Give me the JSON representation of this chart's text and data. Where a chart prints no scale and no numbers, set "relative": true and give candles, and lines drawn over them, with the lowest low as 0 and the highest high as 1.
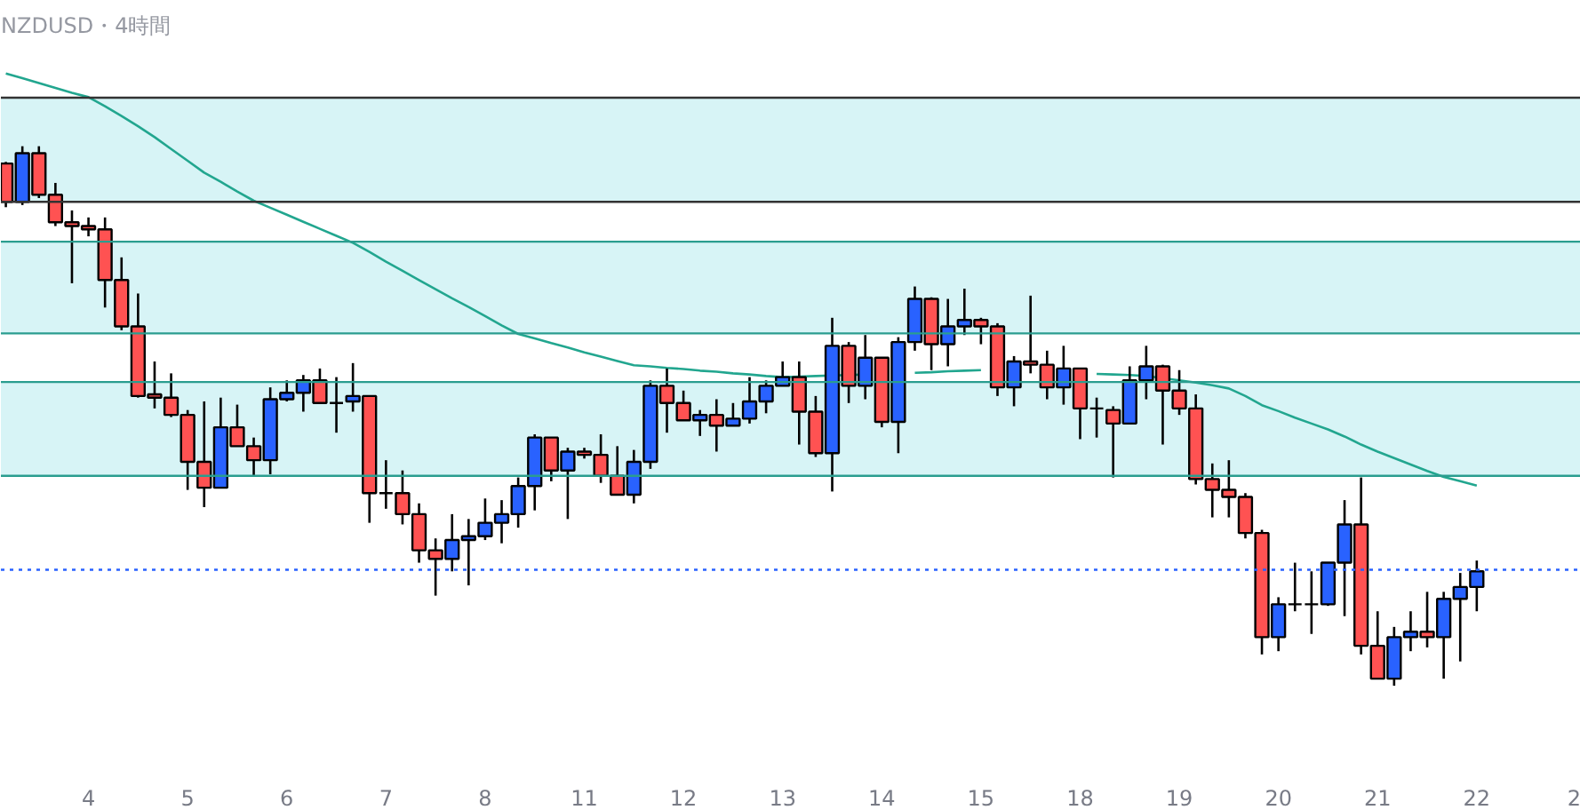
{
  "chart_data": {
    "type": "candlestick",
    "title": "NZDUSD・4時間",
    "relative": true,
    "categories": [
      null,
      null,
      null,
      null,
      null,
      "4",
      null,
      null,
      null,
      null,
      null,
      "5",
      null,
      null,
      null,
      null,
      null,
      "6",
      null,
      null,
      null,
      null,
      null,
      "7",
      null,
      null,
      null,
      null,
      null,
      "8",
      null,
      null,
      null,
      null,
      null,
      "11",
      null,
      null,
      null,
      null,
      null,
      "12",
      null,
      null,
      null,
      null,
      null,
      "13",
      null,
      null,
      null,
      null,
      null,
      "14",
      null,
      null,
      null,
      null,
      null,
      "15",
      null,
      null,
      null,
      null,
      null,
      "18",
      null,
      null,
      null,
      null,
      null,
      "19",
      null,
      null,
      null,
      null,
      null,
      "20",
      null,
      null,
      null,
      null,
      null,
      "21",
      null,
      null,
      null,
      null,
      null,
      "22",
      null,
      null,
      null,
      null,
      null,
      "2"
    ],
    "ohlc": [
      [
        0.968,
        0.971,
        0.887,
        0.897
      ],
      [
        0.897,
        1.0,
        0.891,
        0.987
      ],
      [
        0.987,
        1.0,
        0.904,
        0.91
      ],
      [
        0.91,
        0.932,
        0.852,
        0.859
      ],
      [
        0.859,
        0.881,
        0.746,
        0.852
      ],
      [
        0.852,
        0.868,
        0.833,
        0.846
      ],
      [
        0.846,
        0.868,
        0.701,
        0.752
      ],
      [
        0.752,
        0.794,
        0.659,
        0.666
      ],
      [
        0.666,
        0.727,
        0.534,
        0.537
      ],
      [
        0.54,
        0.601,
        0.514,
        0.534
      ],
      [
        0.534,
        0.579,
        0.498,
        0.502
      ],
      [
        0.502,
        0.511,
        0.363,
        0.415
      ],
      [
        0.415,
        0.527,
        0.331,
        0.367
      ],
      [
        0.367,
        0.534,
        0.367,
        0.479
      ],
      [
        0.479,
        0.521,
        0.444,
        0.444
      ],
      [
        0.444,
        0.46,
        0.389,
        0.418
      ],
      [
        0.418,
        0.553,
        0.392,
        0.531
      ],
      [
        0.531,
        0.566,
        0.527,
        0.543
      ],
      [
        0.543,
        0.576,
        0.508,
        0.566
      ],
      [
        0.566,
        0.588,
        0.524,
        0.524
      ],
      [
        0.524,
        0.572,
        0.469,
        0.524
      ],
      [
        0.527,
        0.598,
        0.508,
        0.537
      ],
      [
        0.537,
        0.537,
        0.302,
        0.357
      ],
      [
        0.357,
        0.418,
        0.328,
        0.357
      ],
      [
        0.357,
        0.399,
        0.299,
        0.318
      ],
      [
        0.318,
        0.338,
        0.228,
        0.251
      ],
      [
        0.251,
        0.273,
        0.167,
        0.235
      ],
      [
        0.235,
        0.318,
        0.212,
        0.27
      ],
      [
        0.27,
        0.309,
        0.186,
        0.277
      ],
      [
        0.277,
        0.347,
        0.27,
        0.302
      ],
      [
        0.302,
        0.344,
        0.264,
        0.318
      ],
      [
        0.318,
        0.386,
        0.293,
        0.37
      ],
      [
        0.37,
        0.466,
        0.325,
        0.46
      ],
      [
        0.46,
        0.46,
        0.379,
        0.399
      ],
      [
        0.399,
        0.441,
        0.309,
        0.434
      ],
      [
        0.434,
        0.441,
        0.421,
        0.428
      ],
      [
        0.428,
        0.466,
        0.376,
        0.389
      ],
      [
        0.389,
        0.444,
        0.354,
        0.354
      ],
      [
        0.354,
        0.437,
        0.338,
        0.415
      ],
      [
        0.415,
        0.566,
        0.402,
        0.556
      ],
      [
        0.556,
        0.588,
        0.469,
        0.524
      ],
      [
        0.524,
        0.547,
        0.492,
        0.492
      ],
      [
        0.492,
        0.511,
        0.463,
        0.502
      ],
      [
        0.502,
        0.531,
        0.434,
        0.482
      ],
      [
        0.482,
        0.524,
        0.482,
        0.495
      ],
      [
        0.495,
        0.572,
        0.486,
        0.527
      ],
      [
        0.527,
        0.566,
        0.505,
        0.556
      ],
      [
        0.556,
        0.601,
        0.556,
        0.572
      ],
      [
        0.572,
        0.601,
        0.447,
        0.508
      ],
      [
        0.508,
        0.537,
        0.424,
        0.431
      ],
      [
        0.431,
        0.682,
        0.36,
        0.63
      ],
      [
        0.63,
        0.637,
        0.524,
        0.556
      ],
      [
        0.556,
        0.65,
        0.531,
        0.608
      ],
      [
        0.608,
        0.608,
        0.479,
        0.489
      ],
      [
        0.489,
        0.646,
        0.431,
        0.637
      ],
      [
        0.637,
        0.74,
        0.621,
        0.717
      ],
      [
        0.717,
        0.72,
        0.585,
        0.633
      ],
      [
        0.633,
        0.717,
        0.592,
        0.666
      ],
      [
        0.666,
        0.736,
        0.65,
        0.678
      ],
      [
        0.678,
        0.682,
        0.633,
        0.666
      ],
      [
        0.666,
        0.672,
        0.537,
        0.553
      ],
      [
        0.553,
        0.611,
        0.518,
        0.601
      ],
      [
        0.601,
        0.723,
        0.579,
        0.595
      ],
      [
        0.595,
        0.621,
        0.531,
        0.553
      ],
      [
        0.553,
        0.63,
        0.521,
        0.588
      ],
      [
        0.588,
        0.588,
        0.457,
        0.514
      ],
      [
        0.514,
        0.534,
        0.46,
        0.514
      ],
      [
        0.511,
        0.518,
        0.386,
        0.486
      ],
      [
        0.486,
        0.592,
        0.486,
        0.566
      ],
      [
        0.566,
        0.63,
        0.531,
        0.592
      ],
      [
        0.592,
        0.595,
        0.447,
        0.547
      ],
      [
        0.547,
        0.585,
        0.502,
        0.514
      ],
      [
        0.514,
        0.54,
        0.373,
        0.383
      ],
      [
        0.383,
        0.412,
        0.312,
        0.363
      ],
      [
        0.363,
        0.418,
        0.312,
        0.35
      ],
      [
        0.35,
        0.357,
        0.273,
        0.283
      ],
      [
        0.283,
        0.289,
        0.058,
        0.09
      ],
      [
        0.09,
        0.164,
        0.064,
        0.151
      ],
      [
        0.151,
        0.228,
        0.138,
        0.151
      ],
      [
        0.151,
        0.212,
        0.096,
        0.151
      ],
      [
        0.151,
        0.228,
        0.148,
        0.228
      ],
      [
        0.228,
        0.344,
        0.129,
        0.299
      ],
      [
        0.299,
        0.386,
        0.058,
        0.074
      ],
      [
        0.074,
        0.138,
        0.013,
        0.013
      ],
      [
        0.013,
        0.109,
        0.0,
        0.09
      ],
      [
        0.09,
        0.138,
        0.064,
        0.1
      ],
      [
        0.1,
        0.174,
        0.071,
        0.09
      ],
      [
        0.09,
        0.174,
        0.013,
        0.161
      ],
      [
        0.161,
        0.209,
        0.045,
        0.183
      ],
      [
        0.183,
        0.232,
        0.138,
        0.212
      ],
      null,
      null,
      null,
      null,
      null,
      null
    ],
    "colors": [
      "#ff5252",
      "#2962ff",
      "#ff5252",
      "#ff5252",
      "#ff5252",
      "#ff5252",
      "#ff5252",
      "#ff5252",
      "#ff5252",
      "#ff5252",
      "#ff5252",
      "#ff5252",
      "#ff5252",
      "#2962ff",
      "#ff5252",
      "#ff5252",
      "#2962ff",
      "#2962ff",
      "#2962ff",
      "#ff5252",
      "#000000",
      "#2962ff",
      "#ff5252",
      "#000000",
      "#ff5252",
      "#ff5252",
      "#ff5252",
      "#2962ff",
      "#2962ff",
      "#2962ff",
      "#2962ff",
      "#2962ff",
      "#2962ff",
      "#ff5252",
      "#2962ff",
      "#ff5252",
      "#ff5252",
      "#ff5252",
      "#2962ff",
      "#2962ff",
      "#ff5252",
      "#ff5252",
      "#2962ff",
      "#ff5252",
      "#2962ff",
      "#2962ff",
      "#2962ff",
      "#2962ff",
      "#ff5252",
      "#ff5252",
      "#2962ff",
      "#ff5252",
      "#2962ff",
      "#ff5252",
      "#2962ff",
      "#2962ff",
      "#ff5252",
      "#2962ff",
      "#2962ff",
      "#ff5252",
      "#ff5252",
      "#2962ff",
      "#ff5252",
      "#ff5252",
      "#2962ff",
      "#ff5252",
      "#000000",
      "#ff5252",
      "#2962ff",
      "#2962ff",
      "#ff5252",
      "#ff5252",
      "#ff5252",
      "#ff5252",
      "#ff5252",
      "#ff5252",
      "#ff5252",
      "#2962ff",
      "#000000",
      "#000000",
      "#2962ff",
      "#2962ff",
      "#ff5252",
      "#ff5252",
      "#2962ff",
      "#2962ff",
      "#ff5252",
      "#2962ff",
      "#2962ff",
      "#2962ff",
      null,
      null,
      null,
      null,
      null,
      null
    ],
    "series": [
      {
        "type": "line",
        "color": "#22a68f",
        "values": [
          1.135,
          1.126,
          1.117,
          1.108,
          1.099,
          1.091,
          1.074,
          1.056,
          1.037,
          1.017,
          0.995,
          0.973,
          0.951,
          0.934,
          0.916,
          0.899,
          0.886,
          0.873,
          0.86,
          0.847,
          0.834,
          0.821,
          0.804,
          0.786,
          0.769,
          0.752,
          0.735,
          0.718,
          0.702,
          0.685,
          0.668,
          0.652,
          0.644,
          0.635,
          0.627,
          0.618,
          0.61,
          0.602,
          0.594,
          0.592,
          0.589,
          0.587,
          0.584,
          0.582,
          0.579,
          0.577,
          0.574,
          0.572,
          0.573,
          0.574,
          0.575,
          0.576,
          0.577,
          null,
          null,
          0.58,
          0.581,
          0.583,
          0.584,
          0.585,
          null,
          null,
          null,
          null,
          null,
          null,
          0.578,
          0.577,
          0.576,
          0.574,
          0.57,
          0.566,
          0.562,
          0.557,
          0.551,
          0.537,
          0.52,
          0.509,
          0.497,
          0.486,
          0.475,
          0.462,
          0.447,
          0.434,
          0.422,
          0.41,
          0.398,
          0.387,
          0.379,
          0.371,
          null,
          null,
          null,
          null,
          null,
          null
        ]
      }
    ],
    "bands": [
      {
        "axis": "y",
        "from": 0.897,
        "to": 1.09,
        "color": "#d7f4f6"
      },
      {
        "axis": "y",
        "from": 0.653,
        "to": 0.823,
        "color": "#d7f4f6"
      },
      {
        "axis": "y",
        "from": 0.389,
        "to": 0.563,
        "color": "#d7f4f6"
      }
    ],
    "ref_lines": [
      {
        "axis": "y",
        "value": 1.09,
        "color": "#333333"
      },
      {
        "axis": "y",
        "value": 0.897,
        "color": "#333333"
      },
      {
        "axis": "y",
        "value": 0.823,
        "color": "#2a9d8f"
      },
      {
        "axis": "y",
        "value": 0.653,
        "color": "#2a9d8f"
      },
      {
        "axis": "y",
        "value": 0.563,
        "color": "#2a9d8f"
      },
      {
        "axis": "y",
        "value": 0.389,
        "color": "#2a9d8f"
      },
      {
        "axis": "y",
        "value": 0.215,
        "color": "#2962ff",
        "line_style": "dotted"
      }
    ]
  }
}
